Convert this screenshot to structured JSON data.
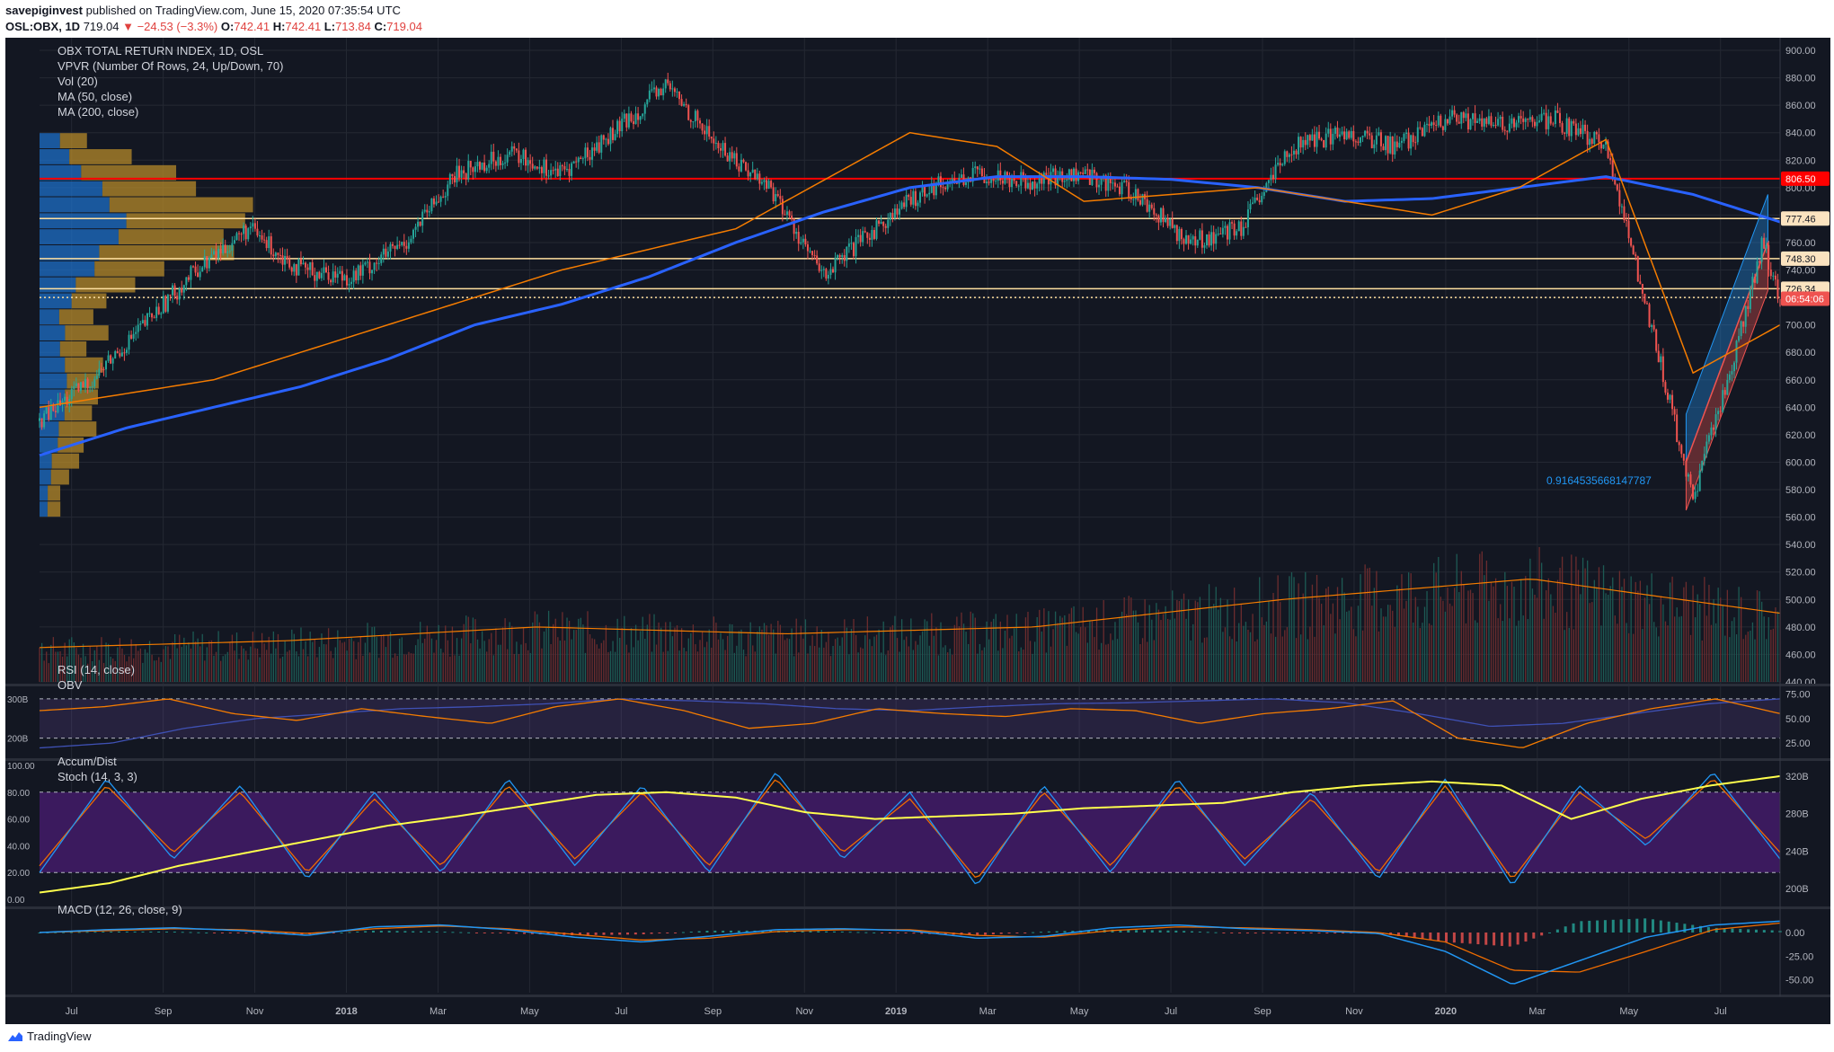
{
  "header": {
    "author": "savepiginvest",
    "published_text": "published on TradingView.com, June 15, 2020 07:35:54 UTC",
    "symbol": "OSL:OBX, 1D",
    "last": "719.04",
    "change": "−24.53 (−3.3%)",
    "o_label": "O:",
    "o": "742.41",
    "h_label": "H:",
    "h": "742.41",
    "l_label": "L:",
    "l": "713.84",
    "c_label": "C:",
    "c": "719.04"
  },
  "legend": {
    "title": "OBX TOTAL RETURN INDEX, 1D, OSL",
    "vpvr": "VPVR (Number Of Rows, 24, Up/Down, 70)",
    "vol": "Vol (20)",
    "ma50": "MA (50, close)",
    "ma200": "MA (200, close)",
    "rsi": "RSI (14, close)",
    "obv": "OBV",
    "accum": "Accum/Dist",
    "stoch": "Stoch (14, 3, 3)",
    "macd": "MACD (12, 26, close, 9)"
  },
  "annotations": {
    "regression_label": "0.9164535668147787"
  },
  "footer": {
    "brand": "TradingView"
  },
  "colors": {
    "background": "#131722",
    "up": "#26a69a",
    "down": "#ef5350",
    "ma50": "#f57c00",
    "ma200": "#2962ff",
    "level_red": "#ff0000",
    "level_gold": "#ffe0a0",
    "vpvr_up": "#1e6fc7",
    "vpvr_down": "#b58a2a",
    "stoch_fill": "#3b1a5e",
    "accum": "#ffff4d"
  },
  "chart_data": [
    {
      "type": "line",
      "title": "OBX TOTAL RETURN INDEX, 1D, OSL",
      "x_axis": {
        "tick_labels": [
          "Jul",
          "Sep",
          "Nov",
          "2018",
          "Mar",
          "May",
          "Jul",
          "Sep",
          "Nov",
          "2019",
          "Mar",
          "May",
          "Jul",
          "Sep",
          "Nov",
          "2020",
          "Mar",
          "May",
          "Jul"
        ],
        "range": [
          "2017-06",
          "2020-07"
        ]
      },
      "y_axis": {
        "tick_labels": [
          "440.00",
          "460.00",
          "480.00",
          "500.00",
          "520.00",
          "540.00",
          "560.00",
          "580.00",
          "600.00",
          "620.00",
          "640.00",
          "660.00",
          "680.00",
          "700.00",
          "720.00",
          "740.00",
          "760.00",
          "780.00",
          "800.00",
          "820.00",
          "840.00",
          "860.00",
          "880.00",
          "900.00"
        ],
        "ylim": [
          440,
          900
        ]
      },
      "price_labels": [
        {
          "value": 806.5,
          "text": "806.50",
          "kind": "horizontal-red"
        },
        {
          "value": 777.46,
          "text": "777.46",
          "kind": "horizontal-gold"
        },
        {
          "value": 748.3,
          "text": "748.30",
          "kind": "horizontal-gold"
        },
        {
          "value": 726.34,
          "text": "726.34",
          "kind": "horizontal-gold"
        },
        {
          "value": 719.04,
          "text": "06:54:06",
          "kind": "last-price-countdown"
        }
      ],
      "horizontal_levels": [
        806.5,
        777.46,
        748.3,
        726.34,
        720.0
      ],
      "series": [
        {
          "name": "MA (200, close)",
          "x": [
            0,
            0.05,
            0.1,
            0.15,
            0.2,
            0.25,
            0.3,
            0.35,
            0.4,
            0.45,
            0.5,
            0.55,
            0.6,
            0.65,
            0.7,
            0.75,
            0.8,
            0.85,
            0.9,
            0.95,
            1.0
          ],
          "values": [
            605,
            625,
            640,
            655,
            675,
            700,
            715,
            735,
            760,
            782,
            800,
            808,
            808,
            806,
            800,
            790,
            792,
            800,
            808,
            795,
            775
          ]
        },
        {
          "name": "MA (50, close)",
          "x": [
            0,
            0.1,
            0.2,
            0.3,
            0.4,
            0.5,
            0.55,
            0.6,
            0.7,
            0.8,
            0.85,
            0.9,
            0.95,
            1.0
          ],
          "values": [
            640,
            660,
            700,
            740,
            770,
            840,
            830,
            790,
            800,
            780,
            800,
            835,
            665,
            700
          ]
        }
      ],
      "price_path": {
        "x": [
          0.0,
          0.03,
          0.06,
          0.09,
          0.12,
          0.15,
          0.18,
          0.21,
          0.24,
          0.27,
          0.3,
          0.33,
          0.36,
          0.39,
          0.42,
          0.45,
          0.48,
          0.51,
          0.54,
          0.57,
          0.6,
          0.63,
          0.66,
          0.69,
          0.72,
          0.75,
          0.78,
          0.81,
          0.84,
          0.87,
          0.9,
          0.93,
          0.95,
          0.96,
          0.97,
          0.99,
          1.0
        ],
        "y": [
          630,
          660,
          700,
          740,
          770,
          740,
          735,
          760,
          810,
          825,
          810,
          840,
          875,
          830,
          800,
          735,
          770,
          800,
          810,
          805,
          810,
          795,
          760,
          770,
          830,
          840,
          830,
          850,
          845,
          850,
          830,
          680,
          570,
          620,
          660,
          760,
          719
        ]
      },
      "regression_channel": {
        "start": 600,
        "end": 760,
        "upper_offset": 35,
        "lower_offset": -35
      },
      "volume_ma_level": [
        465,
        470,
        480,
        475,
        480,
        500,
        515,
        490
      ]
    },
    {
      "type": "line",
      "title": "RSI (14, close) / OBV",
      "y_axis": {
        "tick_labels": [
          "25.00",
          "50.00",
          "75.00"
        ],
        "left_tick_labels": [
          "300B",
          "200B"
        ],
        "ylim": [
          15,
          80
        ]
      },
      "reference_levels": [
        70,
        30
      ],
      "series": [
        {
          "name": "RSI (14, close)",
          "values": [
            58,
            62,
            70,
            55,
            48,
            60,
            52,
            45,
            62,
            70,
            58,
            40,
            45,
            60,
            55,
            52,
            60,
            58,
            45,
            55,
            60,
            68,
            30,
            20,
            45,
            60,
            70,
            55
          ]
        },
        {
          "name": "OBV",
          "values": [
            20,
            25,
            40,
            50,
            55,
            60,
            62,
            65,
            70,
            68,
            65,
            60,
            58,
            62,
            65,
            66,
            68,
            70,
            66,
            55,
            42,
            45,
            55,
            65,
            70
          ]
        }
      ]
    },
    {
      "type": "line",
      "title": "Accum/Dist / Stoch (14, 3, 3)",
      "y_axis": {
        "tick_labels": [
          "0.00",
          "20.00",
          "40.00",
          "60.00",
          "80.00",
          "100.00"
        ],
        "right_tick_labels": [
          "200B",
          "240B",
          "280B",
          "320B"
        ],
        "ylim": [
          0,
          100
        ]
      },
      "reference_levels": [
        80,
        20
      ],
      "series": [
        {
          "name": "Accum/Dist",
          "values": [
            5,
            12,
            25,
            35,
            45,
            55,
            62,
            70,
            78,
            80,
            76,
            65,
            60,
            62,
            64,
            68,
            70,
            72,
            80,
            85,
            88,
            85,
            60,
            75,
            85,
            92
          ]
        },
        {
          "name": "Stoch %K",
          "values": [
            20,
            90,
            30,
            85,
            15,
            80,
            20,
            90,
            25,
            85,
            20,
            95,
            30,
            80,
            10,
            85,
            20,
            90,
            25,
            80,
            15,
            90,
            10,
            85,
            40,
            95,
            30
          ]
        },
        {
          "name": "Stoch %D",
          "values": [
            25,
            85,
            35,
            80,
            20,
            75,
            25,
            85,
            30,
            80,
            25,
            90,
            35,
            75,
            15,
            80,
            25,
            85,
            30,
            75,
            20,
            85,
            15,
            80,
            45,
            90,
            35
          ]
        }
      ]
    },
    {
      "type": "line",
      "title": "MACD (12, 26, close, 9)",
      "y_axis": {
        "tick_labels": [
          "-50.00",
          "-25.00",
          "0.00"
        ],
        "ylim": [
          -60,
          20
        ]
      },
      "series": [
        {
          "name": "MACD",
          "values": [
            0,
            3,
            5,
            2,
            -3,
            6,
            8,
            3,
            -5,
            -10,
            -4,
            3,
            4,
            2,
            -6,
            -4,
            5,
            8,
            4,
            2,
            -1,
            -20,
            -55,
            -30,
            -5,
            8,
            12
          ]
        },
        {
          "name": "Signal",
          "values": [
            0,
            2,
            4,
            3,
            -1,
            4,
            7,
            4,
            -2,
            -8,
            -6,
            1,
            3,
            3,
            -3,
            -5,
            2,
            6,
            5,
            3,
            0,
            -10,
            -40,
            -42,
            -20,
            3,
            10
          ]
        }
      ]
    }
  ]
}
